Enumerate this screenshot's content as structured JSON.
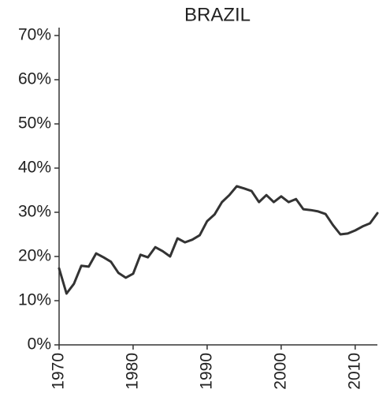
{
  "chart_data": {
    "type": "line",
    "title": "BRAZIL",
    "x": [
      1970,
      1971,
      1972,
      1973,
      1974,
      1975,
      1976,
      1977,
      1978,
      1979,
      1980,
      1981,
      1982,
      1983,
      1984,
      1985,
      1986,
      1987,
      1988,
      1989,
      1990,
      1991,
      1992,
      1993,
      1994,
      1995,
      1996,
      1997,
      1998,
      1999,
      2000,
      2001,
      2002,
      2003,
      2004,
      2005,
      2006,
      2007,
      2008,
      2009,
      2010,
      2011,
      2012,
      2013
    ],
    "series": [
      {
        "name": "Brazil",
        "color": "#333333",
        "values": [
          17.3,
          11.6,
          13.8,
          17.9,
          17.7,
          20.7,
          19.8,
          18.8,
          16.3,
          15.2,
          16.1,
          20.4,
          19.8,
          22.1,
          21.2,
          20.0,
          24.1,
          23.2,
          23.8,
          24.8,
          28.0,
          29.5,
          32.3,
          33.9,
          35.9,
          35.4,
          34.8,
          32.3,
          33.9,
          32.3,
          33.6,
          32.3,
          33.0,
          30.7,
          30.5,
          30.2,
          29.6,
          27.1,
          25.0,
          25.2,
          25.9,
          26.8,
          27.5,
          29.8
        ]
      }
    ],
    "xlim": [
      1970,
      2013
    ],
    "xticks": [
      1970,
      1980,
      1990,
      2000,
      2010
    ],
    "ylim": [
      0,
      70
    ],
    "yticks": [
      {
        "value": 0,
        "label": "0%"
      },
      {
        "value": 10,
        "label": "10%"
      },
      {
        "value": 20,
        "label": "20%"
      },
      {
        "value": 30,
        "label": "30%"
      },
      {
        "value": 40,
        "label": "40%"
      },
      {
        "value": 50,
        "label": "50%"
      },
      {
        "value": 60,
        "label": "60%"
      },
      {
        "value": 70,
        "label": "70%"
      }
    ],
    "grid": false
  }
}
